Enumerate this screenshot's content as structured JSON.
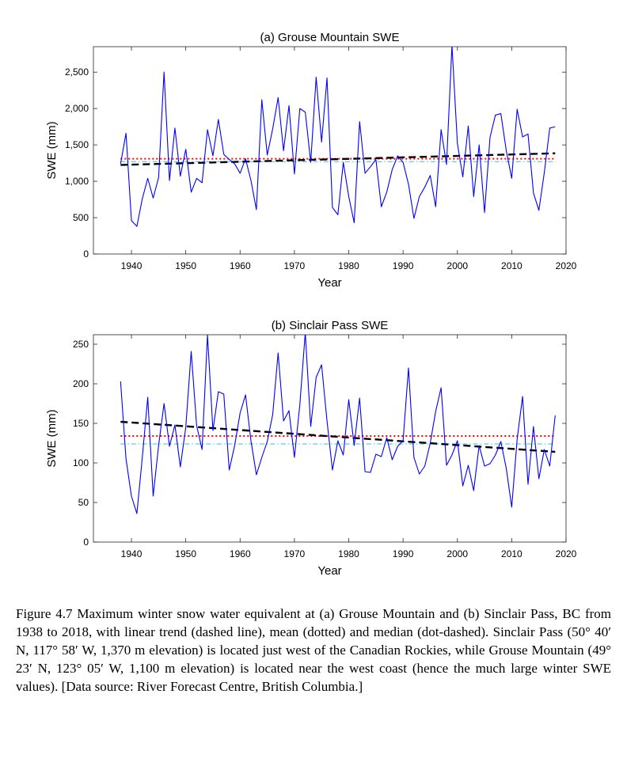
{
  "chart_data": [
    {
      "type": "line",
      "title": "(a)  Grouse Mountain SWE",
      "xlabel": "Year",
      "ylabel": "SWE (mm)",
      "xlim": [
        1933,
        2020
      ],
      "ylim": [
        0,
        2850
      ],
      "xticks": [
        1940,
        1950,
        1960,
        1970,
        1980,
        1990,
        2000,
        2010,
        2020
      ],
      "xtick_labels": [
        "1940",
        "1950",
        "1960",
        "1970",
        "1980",
        "1990",
        "2000",
        "2010",
        "2020"
      ],
      "yticks": [
        0,
        500,
        1000,
        1500,
        2000,
        2500
      ],
      "ytick_labels": [
        "0",
        "500",
        "1,000",
        "1,500",
        "2,000",
        "2,500"
      ],
      "grid": false,
      "series": [
        {
          "style": "line",
          "color": "#0000ff",
          "x": [
            1938,
            1939,
            1940,
            1941,
            1942,
            1943,
            1944,
            1945,
            1946,
            1947,
            1948,
            1949,
            1950,
            1951,
            1952,
            1953,
            1954,
            1955,
            1956,
            1957,
            1958,
            1959,
            1960,
            1961,
            1962,
            1963,
            1964,
            1965,
            1966,
            1967,
            1968,
            1969,
            1970,
            1971,
            1972,
            1973,
            1974,
            1975,
            1976,
            1977,
            1978,
            1979,
            1980,
            1981,
            1982,
            1983,
            1984,
            1985,
            1986,
            1987,
            1988,
            1989,
            1990,
            1991,
            1992,
            1993,
            1994,
            1995,
            1996,
            1997,
            1998,
            1999,
            2000,
            2001,
            2002,
            2003,
            2004,
            2005,
            2006,
            2007,
            2008,
            2009,
            2010,
            2011,
            2012,
            2013,
            2014,
            2015,
            2016,
            2017,
            2018
          ],
          "y": [
            1240,
            1660,
            460,
            380,
            760,
            1040,
            770,
            1050,
            2500,
            1010,
            1730,
            1070,
            1440,
            850,
            1040,
            980,
            1710,
            1350,
            1850,
            1370,
            1300,
            1240,
            1110,
            1310,
            1010,
            610,
            2120,
            1360,
            1720,
            2150,
            1420,
            2040,
            1100,
            2000,
            1950,
            1260,
            2430,
            1540,
            2420,
            640,
            540,
            1260,
            790,
            430,
            1820,
            1110,
            1200,
            1300,
            650,
            850,
            1160,
            1350,
            1260,
            960,
            490,
            790,
            920,
            1080,
            650,
            1710,
            1230,
            2870,
            1520,
            1060,
            1760,
            790,
            1500,
            570,
            1600,
            1910,
            1930,
            1420,
            1040,
            1990,
            1610,
            1650,
            840,
            600,
            1120,
            1730,
            1750
          ]
        },
        {
          "style": "dashed",
          "color": "#000000",
          "x": [
            1938,
            2018
          ],
          "y": [
            1225,
            1385
          ]
        },
        {
          "style": "dotted",
          "color": "#ff0000",
          "x": [
            1938,
            2018
          ],
          "y": [
            1310,
            1310
          ]
        },
        {
          "style": "dashdot",
          "color": "#66c8e0",
          "x": [
            1938,
            2018
          ],
          "y": [
            1270,
            1270
          ]
        }
      ]
    },
    {
      "type": "line",
      "title": "(b)  Sinclair Pass SWE",
      "xlabel": "Year",
      "ylabel": "SWE (mm)",
      "xlim": [
        1933,
        2020
      ],
      "ylim": [
        0,
        262
      ],
      "xticks": [
        1940,
        1950,
        1960,
        1970,
        1980,
        1990,
        2000,
        2010,
        2020
      ],
      "xtick_labels": [
        "1940",
        "1950",
        "1960",
        "1970",
        "1980",
        "1990",
        "2000",
        "2010",
        "2020"
      ],
      "yticks": [
        0,
        50,
        100,
        150,
        200,
        250
      ],
      "ytick_labels": [
        "0",
        "50",
        "100",
        "150",
        "200",
        "250"
      ],
      "grid": false,
      "series": [
        {
          "style": "line",
          "color": "#0000ff",
          "x": [
            1938,
            1939,
            1940,
            1941,
            1942,
            1943,
            1944,
            1945,
            1946,
            1947,
            1948,
            1949,
            1950,
            1951,
            1952,
            1953,
            1954,
            1955,
            1956,
            1957,
            1958,
            1959,
            1960,
            1961,
            1962,
            1963,
            1964,
            1965,
            1966,
            1967,
            1968,
            1969,
            1970,
            1971,
            1972,
            1973,
            1974,
            1975,
            1976,
            1977,
            1978,
            1979,
            1980,
            1981,
            1982,
            1983,
            1984,
            1985,
            1986,
            1987,
            1988,
            1989,
            1990,
            1991,
            1992,
            1993,
            1994,
            1995,
            1996,
            1997,
            1998,
            1999,
            2000,
            2001,
            2002,
            2003,
            2004,
            2005,
            2006,
            2007,
            2008,
            2009,
            2010,
            2011,
            2012,
            2013,
            2014,
            2015,
            2016,
            2017,
            2018
          ],
          "y": [
            203,
            105,
            58,
            36,
            107,
            183,
            58,
            122,
            175,
            121,
            148,
            95,
            145,
            241,
            147,
            117,
            262,
            141,
            190,
            187,
            91,
            122,
            163,
            186,
            128,
            85,
            107,
            127,
            161,
            239,
            153,
            166,
            107,
            174,
            265,
            146,
            208,
            224,
            153,
            91,
            128,
            110,
            180,
            122,
            182,
            89,
            88,
            111,
            108,
            132,
            104,
            121,
            128,
            220,
            107,
            86,
            96,
            125,
            165,
            195,
            97,
            110,
            128,
            71,
            97,
            65,
            122,
            96,
            99,
            110,
            127,
            93,
            44,
            130,
            184,
            73,
            146,
            80,
            117,
            96,
            160
          ]
        },
        {
          "style": "dashed",
          "color": "#000000",
          "x": [
            1938,
            2018
          ],
          "y": [
            152,
            114
          ]
        },
        {
          "style": "dotted",
          "color": "#ff0000",
          "x": [
            1938,
            2018
          ],
          "y": [
            134,
            134
          ]
        },
        {
          "style": "dashdot",
          "color": "#66c8e0",
          "x": [
            1938,
            2018
          ],
          "y": [
            124,
            124
          ]
        }
      ]
    }
  ],
  "caption": "Figure 4.7 Maximum winter snow water equivalent at (a) Grouse Mountain and (b) Sinclair Pass, BC from 1938 to 2018, with linear trend (dashed line), mean (dotted) and median (dot-dashed). Sinclair Pass (50° 40′ N, 117° 58′ W, 1,370 m elevation) is located just west of the Canadian Rockies, while Grouse Mountain (49° 23′ N, 123° 05′ W, 1,100 m elevation) is located near the west coast (hence the much large winter SWE values). [Data source: River Forecast Centre, British Columbia.]"
}
